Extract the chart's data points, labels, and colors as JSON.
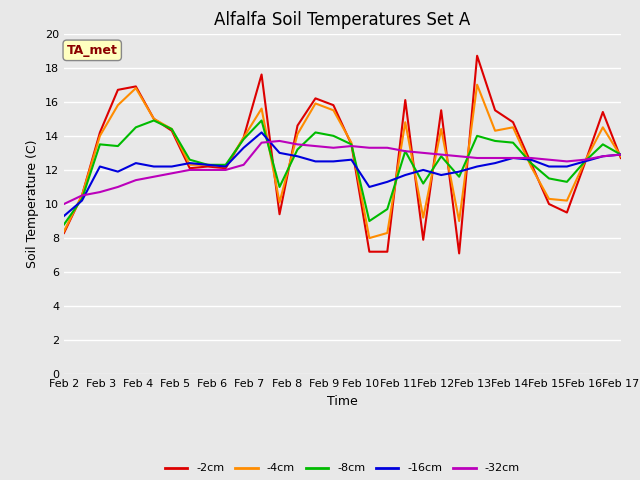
{
  "title": "Alfalfa Soil Temperatures Set A",
  "xlabel": "Time",
  "ylabel": "Soil Temperature (C)",
  "ylim": [
    0,
    20
  ],
  "yticks": [
    0,
    2,
    4,
    6,
    8,
    10,
    12,
    14,
    16,
    18,
    20
  ],
  "x_labels": [
    "Feb 2",
    "Feb 3",
    "Feb 4",
    "Feb 5",
    "Feb 6",
    "Feb 7",
    "Feb 8",
    "Feb 9",
    "Feb 10",
    "Feb 11",
    "Feb 12",
    "Feb 13",
    "Feb 14",
    "Feb 15",
    "Feb 16",
    "Feb 17"
  ],
  "annotation_text": "TA_met",
  "colors": {
    "neg2cm": "#dd0000",
    "neg4cm": "#ff8c00",
    "neg8cm": "#00bb00",
    "neg16cm": "#0000dd",
    "neg32cm": "#bb00bb"
  },
  "series": {
    "neg2cm": [
      8.3,
      10.5,
      14.2,
      16.7,
      16.9,
      15.0,
      14.3,
      12.1,
      12.2,
      12.1,
      13.9,
      17.6,
      9.4,
      14.6,
      16.2,
      15.8,
      13.5,
      7.2,
      7.2,
      16.1,
      7.9,
      15.5,
      7.1,
      18.7,
      15.5,
      14.8,
      12.4,
      10.0,
      9.5,
      12.4,
      15.4,
      12.7
    ],
    "neg4cm": [
      8.4,
      10.5,
      14.0,
      15.8,
      16.8,
      15.0,
      14.4,
      12.3,
      12.3,
      12.2,
      13.9,
      15.6,
      10.1,
      14.1,
      15.9,
      15.5,
      13.6,
      8.0,
      8.3,
      14.8,
      9.2,
      14.4,
      9.0,
      17.0,
      14.3,
      14.5,
      12.2,
      10.3,
      10.2,
      12.5,
      14.5,
      12.8
    ],
    "neg8cm": [
      8.8,
      10.3,
      13.5,
      13.4,
      14.5,
      14.9,
      14.4,
      12.6,
      12.3,
      12.3,
      13.8,
      14.9,
      11.0,
      13.2,
      14.2,
      14.0,
      13.5,
      9.0,
      9.7,
      13.1,
      11.2,
      12.8,
      11.6,
      14.0,
      13.7,
      13.6,
      12.4,
      11.5,
      11.3,
      12.5,
      13.5,
      12.9
    ],
    "neg16cm": [
      9.3,
      10.2,
      12.2,
      11.9,
      12.4,
      12.2,
      12.2,
      12.4,
      12.3,
      12.2,
      13.3,
      14.2,
      13.0,
      12.8,
      12.5,
      12.5,
      12.6,
      11.0,
      11.3,
      11.7,
      12.0,
      11.7,
      11.9,
      12.2,
      12.4,
      12.7,
      12.6,
      12.2,
      12.2,
      12.5,
      12.8,
      12.9
    ],
    "neg32cm": [
      10.0,
      10.5,
      10.7,
      11.0,
      11.4,
      11.6,
      11.8,
      12.0,
      12.0,
      12.0,
      12.3,
      13.6,
      13.7,
      13.5,
      13.4,
      13.3,
      13.4,
      13.3,
      13.3,
      13.1,
      13.0,
      12.9,
      12.8,
      12.7,
      12.7,
      12.7,
      12.7,
      12.6,
      12.5,
      12.6,
      12.8,
      12.9
    ]
  },
  "bg_color": "#e8e8e8",
  "fig_color": "#e8e8e8",
  "linewidth": 1.5,
  "title_fontsize": 12,
  "axis_label_fontsize": 9,
  "tick_fontsize": 8
}
